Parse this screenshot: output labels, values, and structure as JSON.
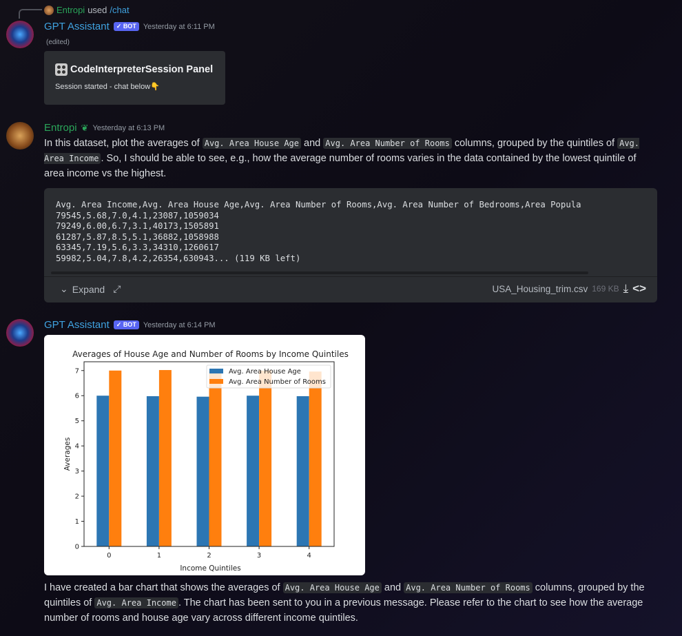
{
  "reply": {
    "user": "Entropi",
    "used": "used",
    "command": "/chat"
  },
  "msg1": {
    "author": "GPT Assistant",
    "badge": "BOT",
    "timestamp": "Yesterday at 6:11 PM",
    "edited": "(edited)",
    "embed": {
      "icon": "dice-icon",
      "title": "CodeInterpreterSession Panel",
      "body": "Session started - chat below",
      "emoji": "👇"
    }
  },
  "msg2": {
    "author": "Entropi",
    "timestamp": "Yesterday at 6:13 PM",
    "text": {
      "p1": "In this dataset, plot the averages of ",
      "c1": "Avg. Area House Age",
      "p2": " and ",
      "c2": "Avg. Area Number of Rooms",
      "p3": " columns, grouped by the quintiles of ",
      "c3": "Avg. Area Income",
      "p4": ". So, I should be able to see, e.g., how the average number of rooms varies in the data contained by the lowest quintile of area income vs the highest."
    },
    "attachment": {
      "lines": [
        "Avg. Area Income,Avg. Area House Age,Avg. Area Number of Rooms,Avg. Area Number of Bedrooms,Area Popula",
        "79545,5.68,7.0,4.1,23087,1059034",
        "79249,6.00,6.7,3.1,40173,1505891",
        "61287,5.87,8.5,5.1,36882,1058988",
        "63345,7.19,5.6,3.3,34310,1260617",
        "59982,5.04,7.8,4.2,26354,630943... (119 KB left)"
      ],
      "expand": "Expand",
      "filename": "USA_Housing_trim.csv",
      "size": "169 KB"
    }
  },
  "msg3": {
    "author": "GPT Assistant",
    "badge": "BOT",
    "timestamp": "Yesterday at 6:14 PM",
    "text": {
      "p1": "I have created a bar chart that shows the averages of ",
      "c1": "Avg. Area House Age",
      "p2": " and ",
      "c2": "Avg. Area Number of Rooms",
      "p3": " columns, grouped by the quintiles of ",
      "c3": "Avg. Area Income",
      "p4": ". The chart has been sent to you in a previous message. Please refer to the chart to see how the average number of rooms and house age vary across different income quintiles."
    }
  },
  "chart_data": {
    "type": "bar",
    "title": "Averages of House Age and Number of Rooms by Income Quintiles",
    "xlabel": "Income Quintiles",
    "ylabel": "Averages",
    "categories": [
      "0",
      "1",
      "2",
      "3",
      "4"
    ],
    "yticks": [
      "0",
      "1",
      "2",
      "3",
      "4",
      "5",
      "6",
      "7"
    ],
    "ylim": [
      0,
      7.35
    ],
    "legend": "top-right",
    "grid": false,
    "series": [
      {
        "name": "Avg. Area House Age",
        "color": "#2c76b3",
        "values": [
          6.0,
          5.98,
          5.96,
          6.0,
          5.98
        ]
      },
      {
        "name": "Avg. Area Number of Rooms",
        "color": "#ff7f0e",
        "values": [
          7.0,
          7.02,
          6.99,
          7.0,
          6.96
        ]
      }
    ]
  }
}
